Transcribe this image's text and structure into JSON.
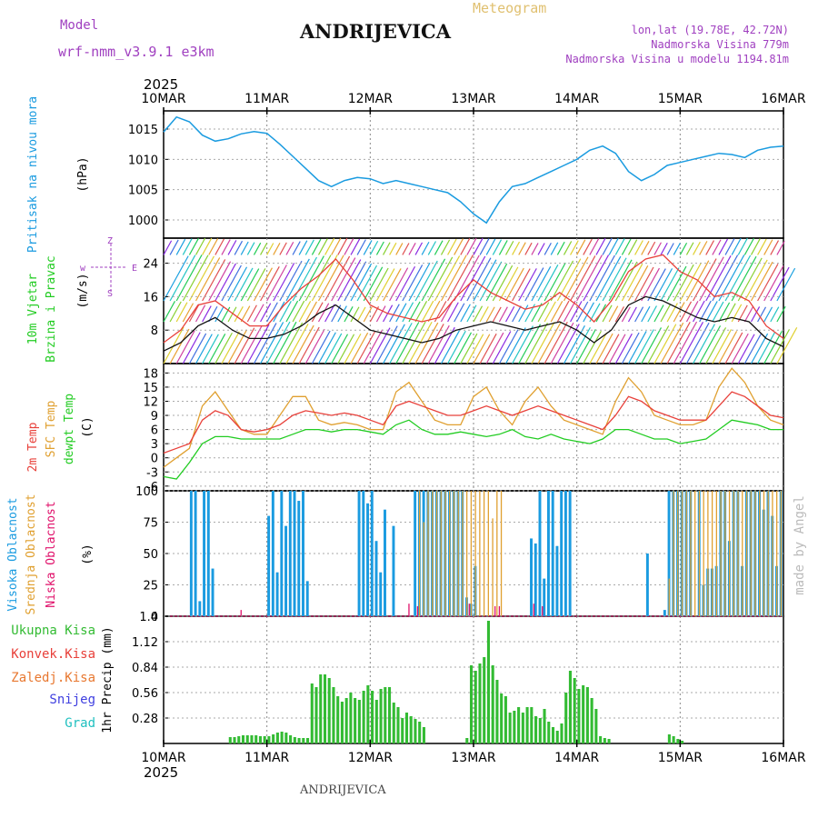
{
  "header": {
    "title": "ANDRIJEVICA",
    "subtitle": "Meteogram",
    "model_label": "Model",
    "model_name": "wrf-nmm_v3.9.1 e3km",
    "coords": "lon,lat (19.78E, 42.72N)",
    "elevation": "Nadmorska Visina 779m",
    "model_elevation": "Nadmorska Visina u modelu 1194.81m",
    "footer": "ANDRIJEVICA",
    "watermark": "made by Angel",
    "year_top": "2025",
    "year_bottom": "2025"
  },
  "colors": {
    "pressure": "#1a9be0",
    "temp2m": "#e8403a",
    "sfc": "#e0a030",
    "dewpt": "#22cc22",
    "cloud_high": "#1a9be0",
    "cloud_mid": "#e0a030",
    "cloud_low": "#e0106a",
    "precip": "#33bb33",
    "purple": "#a040c0"
  },
  "chart_data": [
    {
      "type": "line",
      "name": "pressure",
      "axis_labels": [
        "Pritisak na nivou mora",
        "(hPa)"
      ],
      "x_ticks": [
        "10MAR",
        "11MAR",
        "12MAR",
        "13MAR",
        "14MAR",
        "15MAR",
        "16MAR"
      ],
      "x_range": [
        0,
        144
      ],
      "y_ticks": [
        "1000",
        "1005",
        "1010",
        "1015"
      ],
      "ylim": [
        997,
        1018
      ],
      "series": [
        {
          "name": "MSLP",
          "x": [
            0,
            3,
            6,
            9,
            12,
            15,
            18,
            21,
            24,
            27,
            30,
            33,
            36,
            39,
            42,
            45,
            48,
            51,
            54,
            57,
            60,
            63,
            66,
            69,
            72,
            75,
            78,
            81,
            84,
            87,
            90,
            93,
            96,
            99,
            102,
            105,
            108,
            111,
            114,
            117,
            120,
            123,
            126,
            129,
            132,
            135,
            138,
            141,
            144
          ],
          "values": [
            1014.5,
            1017.0,
            1016.2,
            1014.0,
            1013.0,
            1013.4,
            1014.2,
            1014.6,
            1014.3,
            1012.5,
            1010.5,
            1008.5,
            1006.5,
            1005.5,
            1006.5,
            1007.0,
            1006.8,
            1006.0,
            1006.5,
            1006.0,
            1005.5,
            1005.0,
            1004.5,
            1003.0,
            1001.0,
            999.5,
            1003.0,
            1005.5,
            1006.0,
            1007.0,
            1008.0,
            1009.0,
            1010.0,
            1011.5,
            1012.2,
            1011.0,
            1008.0,
            1006.5,
            1007.5,
            1009.0,
            1009.5,
            1010.0,
            1010.5,
            1011.0,
            1010.8,
            1010.3,
            1011.5,
            1012.0,
            1012.2
          ]
        }
      ]
    },
    {
      "type": "line",
      "name": "wind",
      "axis_labels": [
        "10m Vjetar",
        "Brzina i Pravac",
        "(m/s)"
      ],
      "compass_labels": [
        "w",
        "E",
        "Z",
        "S"
      ],
      "y_ticks": [
        "8",
        "16",
        "24"
      ],
      "ylim": [
        0,
        30
      ],
      "series": [
        {
          "name": "wind speed",
          "x": [
            0,
            4,
            8,
            12,
            16,
            20,
            24,
            28,
            32,
            36,
            40,
            44,
            48,
            52,
            56,
            60,
            64,
            68,
            72,
            76,
            80,
            84,
            88,
            92,
            96,
            100,
            104,
            108,
            112,
            116,
            120,
            124,
            128,
            132,
            136,
            140,
            144
          ],
          "values": [
            3,
            5,
            9,
            11,
            8,
            6,
            6,
            7,
            9,
            12,
            14,
            11,
            8,
            7,
            6,
            5,
            6,
            8,
            9,
            10,
            9,
            8,
            9,
            10,
            8,
            5,
            8,
            14,
            16,
            15,
            13,
            11,
            10,
            11,
            10,
            6,
            4
          ]
        },
        {
          "name": "wind gust",
          "x": [
            0,
            4,
            8,
            12,
            16,
            20,
            24,
            28,
            32,
            36,
            40,
            44,
            48,
            52,
            56,
            60,
            64,
            68,
            72,
            76,
            80,
            84,
            88,
            92,
            96,
            100,
            104,
            108,
            112,
            116,
            120,
            124,
            128,
            132,
            136,
            140,
            144
          ],
          "values": [
            5,
            8,
            14,
            15,
            12,
            9,
            9,
            14,
            18,
            21,
            25,
            20,
            14,
            12,
            11,
            10,
            11,
            16,
            20,
            17,
            15,
            13,
            14,
            17,
            14,
            10,
            15,
            22,
            25,
            26,
            22,
            20,
            16,
            17,
            15,
            9,
            6
          ]
        }
      ]
    },
    {
      "type": "line",
      "name": "temperature",
      "axis_labels": [
        "2m Temp",
        "SFC Temp",
        "dewpt Temp",
        "(C)"
      ],
      "y_ticks": [
        "-6",
        "-3",
        "0",
        "3",
        "6",
        "9",
        "12",
        "15",
        "18"
      ],
      "ylim": [
        -7,
        20
      ],
      "series": [
        {
          "name": "2m Temp",
          "x": [
            0,
            3,
            6,
            9,
            12,
            15,
            18,
            21,
            24,
            27,
            30,
            33,
            36,
            39,
            42,
            45,
            48,
            51,
            54,
            57,
            60,
            63,
            66,
            69,
            72,
            75,
            78,
            81,
            84,
            87,
            90,
            93,
            96,
            99,
            102,
            105,
            108,
            111,
            114,
            117,
            120,
            123,
            126,
            129,
            132,
            135,
            138,
            141,
            144
          ],
          "values": [
            1,
            2,
            3,
            8,
            10,
            9,
            6,
            5.5,
            6,
            7,
            9,
            10,
            9.5,
            9,
            9.5,
            9,
            8,
            7,
            11,
            12,
            11,
            10,
            9,
            9,
            10,
            11,
            10,
            9,
            10,
            11,
            10,
            9,
            8,
            7,
            6,
            9,
            13,
            12,
            10,
            9,
            8,
            8,
            8,
            11,
            14,
            13,
            11,
            9,
            8.5
          ]
        },
        {
          "name": "SFC Temp",
          "x": [
            0,
            3,
            6,
            9,
            12,
            15,
            18,
            21,
            24,
            27,
            30,
            33,
            36,
            39,
            42,
            45,
            48,
            51,
            54,
            57,
            60,
            63,
            66,
            69,
            72,
            75,
            78,
            81,
            84,
            87,
            90,
            93,
            96,
            99,
            102,
            105,
            108,
            111,
            114,
            117,
            120,
            123,
            126,
            129,
            132,
            135,
            138,
            141,
            144
          ],
          "values": [
            -2,
            0,
            2,
            11,
            14,
            10,
            6,
            5,
            5,
            9,
            13,
            13,
            8,
            7,
            7.5,
            7,
            6,
            6,
            14,
            16,
            12,
            8,
            7,
            7,
            13,
            15,
            10,
            7,
            12,
            15,
            11,
            8,
            7,
            6,
            5,
            12,
            17,
            14,
            9,
            8,
            7,
            7,
            8,
            15,
            19,
            16,
            11,
            8,
            7
          ]
        },
        {
          "name": "dewpt Temp",
          "x": [
            0,
            3,
            6,
            9,
            12,
            15,
            18,
            21,
            24,
            27,
            30,
            33,
            36,
            39,
            42,
            45,
            48,
            51,
            54,
            57,
            60,
            63,
            66,
            69,
            72,
            75,
            78,
            81,
            84,
            87,
            90,
            93,
            96,
            99,
            102,
            105,
            108,
            111,
            114,
            117,
            120,
            123,
            126,
            129,
            132,
            135,
            138,
            141,
            144
          ],
          "values": [
            -4,
            -4.5,
            -1,
            3,
            4.5,
            4.5,
            4,
            4,
            4,
            4,
            5,
            6,
            6,
            5.5,
            6,
            6,
            5.5,
            5,
            7,
            8,
            6,
            5,
            5,
            5.5,
            5,
            4.5,
            5,
            6,
            4.5,
            4,
            5,
            4,
            3.5,
            3,
            4,
            6,
            6,
            5,
            4,
            4,
            3,
            3.5,
            4,
            6,
            8,
            7.5,
            7,
            6,
            6
          ]
        }
      ]
    },
    {
      "type": "bar",
      "name": "clouds",
      "axis_labels": [
        "Visoka Oblacnost",
        "Srednja Oblacnost",
        "Niska Oblacnost",
        "(%)"
      ],
      "y_ticks": [
        "0",
        "25",
        "50",
        "75",
        "100"
      ],
      "ylim": [
        0,
        100
      ],
      "series": [
        {
          "name": "Visoka Oblacnost",
          "x": [
            6,
            7,
            8,
            9,
            10,
            11,
            24,
            25,
            26,
            27,
            28,
            29,
            30,
            31,
            32,
            33,
            45,
            46,
            47,
            48,
            49,
            50,
            51,
            53,
            58,
            59,
            60,
            61,
            62,
            63,
            64,
            65,
            66,
            67,
            68,
            69,
            70,
            71,
            72,
            85,
            86,
            87,
            88,
            89,
            90,
            91,
            92,
            93,
            94,
            112,
            116,
            117,
            118,
            119,
            120,
            121,
            122,
            124,
            125,
            126,
            127,
            128,
            129,
            130,
            131,
            132,
            133,
            134,
            135,
            136,
            137,
            138,
            139,
            140,
            141,
            142,
            143
          ],
          "values": [
            100,
            100,
            12,
            100,
            100,
            38,
            80,
            100,
            35,
            100,
            72,
            100,
            100,
            92,
            100,
            28,
            100,
            100,
            90,
            100,
            60,
            35,
            85,
            72,
            100,
            100,
            100,
            100,
            100,
            100,
            100,
            100,
            100,
            100,
            100,
            100,
            15,
            10,
            40,
            62,
            58,
            100,
            30,
            100,
            100,
            56,
            100,
            100,
            100,
            50,
            5,
            100,
            100,
            100,
            100,
            100,
            100,
            100,
            25,
            38,
            38,
            40,
            100,
            100,
            60,
            100,
            100,
            40,
            100,
            100,
            100,
            100,
            85,
            100,
            80,
            40,
            100
          ]
        },
        {
          "name": "Srednja Oblacnost",
          "x": [
            59,
            60,
            61,
            62,
            63,
            64,
            65,
            66,
            67,
            68,
            69,
            70,
            71,
            72,
            73,
            74,
            75,
            76,
            77,
            78,
            117,
            118,
            119,
            120,
            121,
            122,
            123,
            124,
            125,
            126,
            127,
            128,
            129,
            130,
            131,
            132,
            133,
            134,
            135,
            136,
            137,
            138,
            139,
            140,
            141,
            142,
            143
          ],
          "values": [
            100,
            75,
            100,
            100,
            100,
            100,
            100,
            100,
            100,
            100,
            100,
            100,
            100,
            100,
            100,
            100,
            100,
            78,
            100,
            100,
            30,
            100,
            100,
            100,
            100,
            100,
            100,
            100,
            100,
            100,
            100,
            100,
            100,
            100,
            100,
            100,
            100,
            100,
            100,
            100,
            100,
            100,
            100,
            100,
            100,
            100,
            100
          ]
        },
        {
          "name": "Niska Oblacnost",
          "x": [
            18,
            57,
            59,
            71,
            77,
            78,
            86,
            88
          ],
          "values": [
            5,
            10,
            8,
            10,
            8,
            8,
            10,
            8
          ]
        }
      ]
    },
    {
      "type": "bar",
      "name": "precipitation",
      "axis_labels": [
        "1hr Precip (mm)"
      ],
      "legend": [
        "Ukupna Kisa",
        "Konvek.Kisa",
        "Zaledj.Kisa",
        "Snijeg",
        "Grad"
      ],
      "y_ticks": [
        "0.28",
        "0.56",
        "0.84",
        "1.12",
        "1.4"
      ],
      "ylim": [
        0,
        1.4
      ],
      "series": [
        {
          "name": "Ukupna Kisa",
          "x": [
            15,
            16,
            17,
            18,
            19,
            20,
            21,
            22,
            23,
            24,
            25,
            26,
            27,
            28,
            29,
            30,
            31,
            32,
            33,
            34,
            35,
            36,
            37,
            38,
            39,
            40,
            41,
            42,
            43,
            44,
            45,
            46,
            47,
            48,
            49,
            50,
            51,
            52,
            53,
            54,
            55,
            56,
            57,
            58,
            59,
            60,
            70,
            71,
            72,
            73,
            74,
            75,
            76,
            77,
            78,
            79,
            80,
            81,
            82,
            83,
            84,
            85,
            86,
            87,
            88,
            89,
            90,
            91,
            92,
            93,
            94,
            95,
            96,
            97,
            98,
            99,
            100,
            101,
            102,
            103,
            117,
            118,
            119,
            120
          ],
          "values": [
            0.07,
            0.07,
            0.08,
            0.09,
            0.09,
            0.09,
            0.09,
            0.08,
            0.08,
            0.08,
            0.1,
            0.12,
            0.13,
            0.12,
            0.09,
            0.07,
            0.06,
            0.06,
            0.06,
            0.66,
            0.62,
            0.76,
            0.76,
            0.72,
            0.62,
            0.52,
            0.46,
            0.5,
            0.56,
            0.5,
            0.48,
            0.58,
            0.64,
            0.58,
            0.48,
            0.6,
            0.62,
            0.62,
            0.45,
            0.4,
            0.28,
            0.34,
            0.3,
            0.27,
            0.24,
            0.18,
            0.06,
            0.86,
            0.8,
            0.88,
            0.95,
            1.35,
            0.86,
            0.7,
            0.55,
            0.52,
            0.34,
            0.36,
            0.4,
            0.34,
            0.4,
            0.4,
            0.3,
            0.28,
            0.38,
            0.24,
            0.18,
            0.14,
            0.22,
            0.56,
            0.8,
            0.72,
            0.6,
            0.64,
            0.62,
            0.5,
            0.38,
            0.08,
            0.06,
            0.05,
            0.1,
            0.08,
            0.05,
            0.03
          ]
        }
      ]
    }
  ]
}
